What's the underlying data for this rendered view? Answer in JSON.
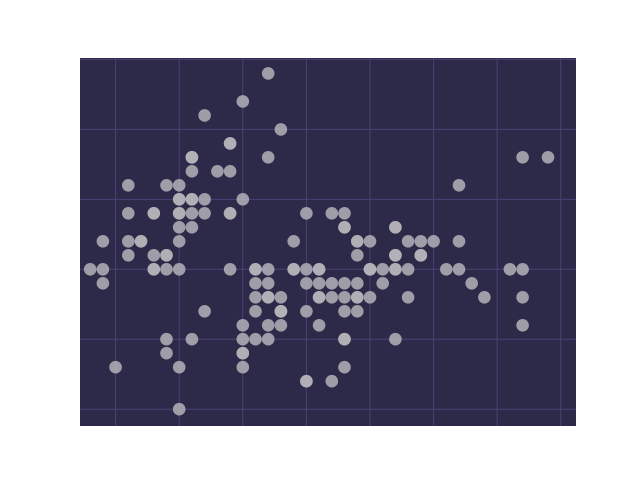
{
  "chart_data": {
    "type": "scatter",
    "title": "",
    "xlabel": "",
    "ylabel": "",
    "xlim": [
      4.22,
      8.12
    ],
    "ylim": [
      1.88,
      4.51
    ],
    "grid": true,
    "tick_labels_visible": false,
    "x_ticks": [
      4.5,
      5.0,
      5.5,
      6.0,
      6.5,
      7.0,
      7.5,
      8.0
    ],
    "y_ticks": [
      2.0,
      2.5,
      3.0,
      3.5,
      4.0,
      4.5
    ],
    "colors": {
      "plot_background": "#2c2a48",
      "grid": "#4a4278",
      "marker": "#b4b2b8",
      "page_background": "#ffffff"
    },
    "series": [
      {
        "x": [
          5.1,
          4.9,
          4.7,
          4.6,
          5.0,
          5.4,
          4.6,
          5.0,
          4.4,
          4.9,
          5.4,
          4.8,
          4.8,
          4.3,
          5.8,
          5.7,
          5.4,
          5.1,
          5.7,
          5.1,
          5.4,
          5.1,
          4.6,
          5.1,
          4.8,
          5.0,
          5.0,
          5.2,
          5.2,
          4.7,
          4.8,
          5.4,
          5.2,
          5.5,
          4.9,
          5.0,
          5.5,
          4.9,
          4.4,
          5.1,
          5.0,
          4.5,
          4.4,
          5.0,
          5.1,
          4.8,
          5.1,
          4.6,
          5.3,
          5.0,
          7.0,
          6.4,
          6.9,
          5.5,
          6.5,
          5.7,
          6.3,
          4.9,
          6.6,
          5.2,
          5.0,
          5.9,
          6.0,
          6.1,
          5.6,
          6.7,
          5.6,
          5.8,
          6.2,
          5.6,
          5.9,
          6.1,
          6.3,
          6.1,
          6.4,
          6.6,
          6.8,
          6.7,
          6.0,
          5.7,
          5.5,
          5.5,
          5.8,
          6.0,
          5.4,
          6.0,
          6.7,
          6.3,
          5.6,
          5.5,
          5.5,
          6.1,
          5.8,
          5.0,
          5.6,
          5.7,
          5.7,
          6.2,
          5.1,
          5.7,
          6.3,
          5.8,
          7.1,
          6.3,
          6.5,
          7.6,
          4.9,
          7.3,
          6.7,
          7.2,
          6.5,
          6.4,
          6.8,
          5.7,
          5.8,
          6.4,
          6.5,
          7.7,
          7.7,
          6.0,
          6.9,
          5.6,
          7.7,
          6.3,
          6.7,
          7.2,
          6.2,
          6.1,
          6.4,
          7.2,
          7.4,
          7.9,
          6.4,
          6.3,
          6.1,
          7.7,
          6.3,
          6.4,
          6.0,
          6.9,
          6.7,
          6.9,
          5.8,
          6.8,
          6.7,
          6.7,
          6.3,
          6.5,
          6.2,
          5.9
        ],
        "y": [
          3.5,
          3.0,
          3.2,
          3.1,
          3.6,
          3.9,
          3.4,
          3.4,
          2.9,
          3.1,
          3.7,
          3.4,
          3.0,
          3.0,
          4.0,
          4.4,
          3.9,
          3.5,
          3.8,
          3.8,
          3.4,
          3.7,
          3.6,
          3.3,
          3.4,
          3.0,
          3.4,
          3.5,
          3.4,
          3.2,
          3.1,
          3.4,
          4.1,
          4.2,
          3.1,
          3.2,
          3.5,
          3.6,
          3.0,
          3.4,
          3.5,
          2.3,
          3.2,
          3.5,
          3.8,
          3.0,
          3.8,
          3.2,
          3.7,
          3.3,
          3.2,
          3.2,
          3.1,
          2.3,
          2.8,
          2.8,
          3.3,
          2.4,
          2.9,
          2.7,
          2.0,
          3.0,
          2.2,
          2.9,
          2.9,
          3.1,
          3.0,
          2.7,
          2.2,
          2.5,
          3.2,
          2.8,
          2.5,
          2.8,
          2.9,
          3.0,
          2.8,
          3.0,
          2.9,
          2.6,
          2.4,
          2.4,
          2.7,
          2.7,
          3.0,
          3.4,
          3.1,
          2.3,
          3.0,
          2.5,
          2.6,
          3.0,
          2.6,
          2.3,
          2.7,
          3.0,
          2.9,
          2.9,
          2.5,
          2.8,
          3.3,
          2.7,
          3.0,
          2.9,
          3.0,
          3.0,
          2.5,
          2.9,
          2.5,
          3.6,
          3.2,
          2.7,
          3.0,
          2.5,
          2.8,
          3.2,
          3.0,
          3.8,
          2.6,
          2.2,
          3.2,
          2.8,
          2.8,
          2.7,
          3.3,
          3.2,
          2.8,
          3.0,
          2.8,
          3.0,
          2.8,
          3.8,
          2.8,
          2.8,
          2.6,
          3.0,
          3.4,
          3.1,
          3.0,
          3.1,
          3.1,
          3.1,
          2.7,
          3.2,
          3.3,
          3.0,
          2.5,
          3.0,
          3.4,
          3.0
        ]
      }
    ]
  }
}
